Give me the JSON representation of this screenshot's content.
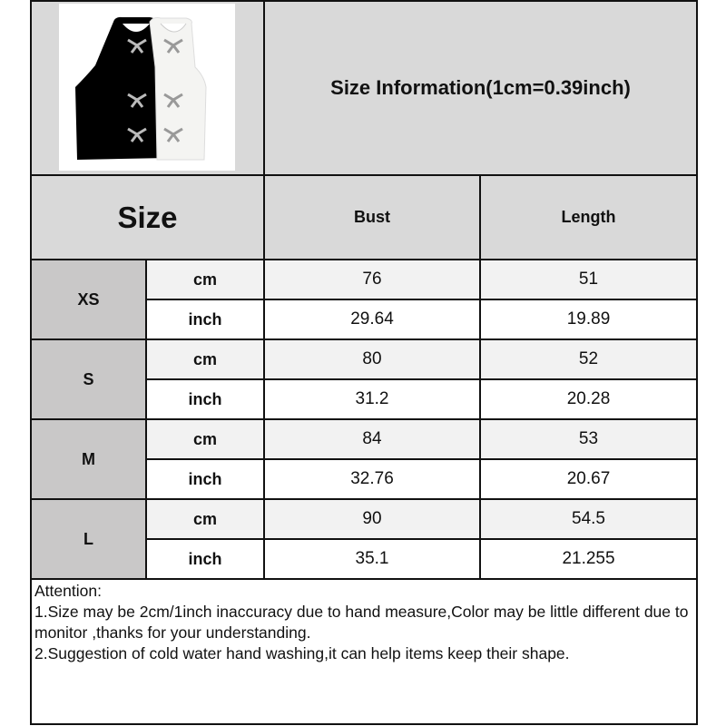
{
  "title": "Size Information(1cm=0.39inch)",
  "headers": {
    "size": "Size",
    "bust": "Bust",
    "length": "Length"
  },
  "rows": [
    {
      "size": "XS",
      "cm": {
        "unit": "cm",
        "bust": "76",
        "length": "51"
      },
      "inch": {
        "unit": "inch",
        "bust": "29.64",
        "length": "19.89"
      }
    },
    {
      "size": "S",
      "cm": {
        "unit": "cm",
        "bust": "80",
        "length": "52"
      },
      "inch": {
        "unit": "inch",
        "bust": "31.2",
        "length": "20.28"
      }
    },
    {
      "size": "M",
      "cm": {
        "unit": "cm",
        "bust": "84",
        "length": "53"
      },
      "inch": {
        "unit": "inch",
        "bust": "32.76",
        "length": "20.67"
      }
    },
    {
      "size": "L",
      "cm": {
        "unit": "cm",
        "bust": "90",
        "length": "54.5"
      },
      "inch": {
        "unit": "inch",
        "bust": "35.1",
        "length": "21.255"
      }
    }
  ],
  "attention": {
    "heading": "Attention:",
    "line1": "1.Size may be 2cm/1inch inaccuracy due to hand measure,Color may be little different due to monitor ,thanks for your understanding.",
    "line2": "2.Suggestion of cold water hand washing,it can help items keep their shape."
  },
  "colors": {
    "header": "#d9d9d9",
    "size_cell": "#c9c8c8",
    "cm_row": "#f2f2f2",
    "inch_row": "#ffffff"
  }
}
